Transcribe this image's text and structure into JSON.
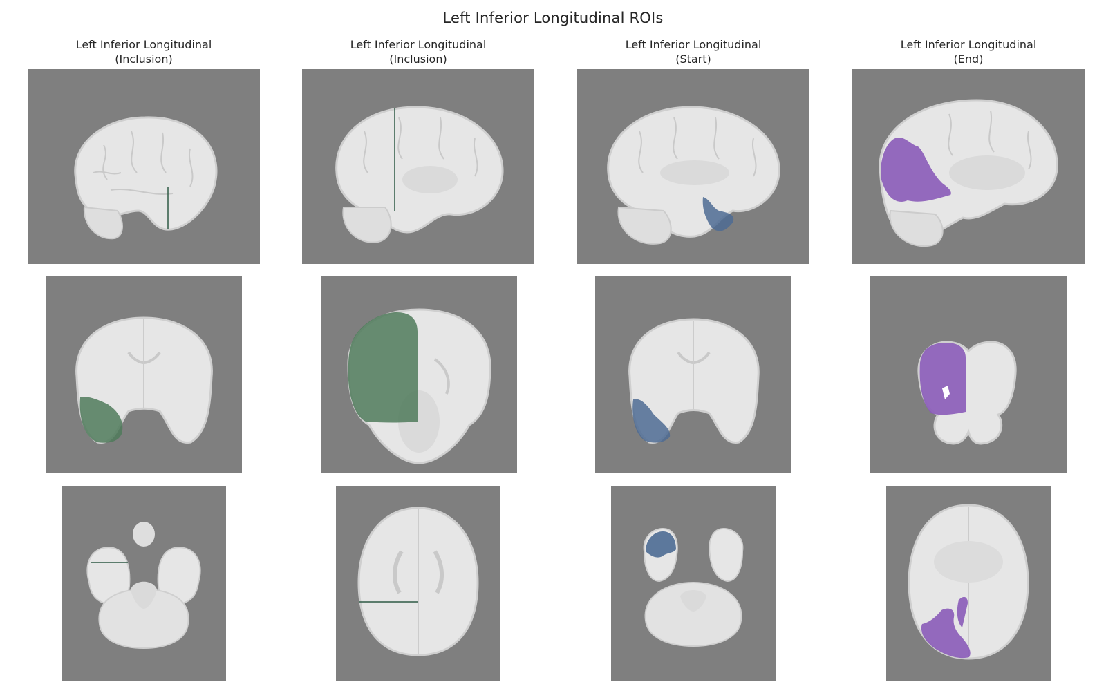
{
  "figure": {
    "title": "Left Inferior Longitudinal ROIs"
  },
  "columns": [
    {
      "title_line1": "Left Inferior Longitudinal",
      "title_line2": "(Inclusion)",
      "overlay_color": "#4f7a5a"
    },
    {
      "title_line1": "Left Inferior Longitudinal",
      "title_line2": "(Inclusion)",
      "overlay_color": "#4f7a5a"
    },
    {
      "title_line1": "Left Inferior Longitudinal",
      "title_line2": "(Start)",
      "overlay_color": "#4d6b93"
    },
    {
      "title_line1": "Left Inferior Longitudinal",
      "title_line2": "(End)",
      "overlay_color": "#8a5bb8"
    }
  ],
  "rows": [
    {
      "view": "sagittal"
    },
    {
      "view": "coronal"
    },
    {
      "view": "axial"
    }
  ],
  "colors": {
    "background": "#7f7f7f",
    "brain": "#e6e6e6",
    "brain_edge": "#cfcfcf",
    "inclusion_line": "#2f5a45"
  }
}
